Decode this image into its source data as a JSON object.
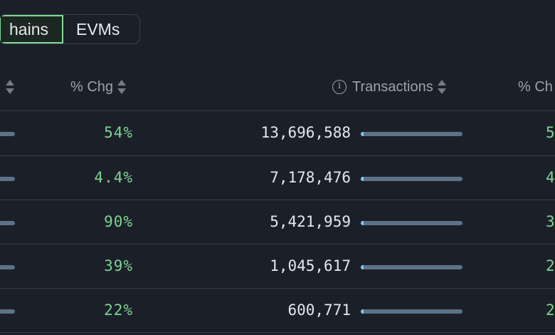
{
  "tabs": [
    {
      "label": "hains",
      "active": true
    },
    {
      "label": "EVMs",
      "active": false
    }
  ],
  "columns": {
    "chg_left": "% Chg",
    "transactions": "Transactions",
    "chg_right": "% Ch"
  },
  "icons": {
    "sort": "sort-icon",
    "info": "info-icon"
  },
  "rows": [
    {
      "chg": "54%",
      "transactions": "13,696,588",
      "right_chg": "5"
    },
    {
      "chg": "4.4%",
      "transactions": "7,178,476",
      "right_chg": "4"
    },
    {
      "chg": "90%",
      "transactions": "5,421,959",
      "right_chg": "3"
    },
    {
      "chg": "39%",
      "transactions": "1,045,617",
      "right_chg": "2"
    },
    {
      "chg": "22%",
      "transactions": "600,771",
      "right_chg": "2"
    }
  ],
  "colors": {
    "background": "#1b2028",
    "accent_green": "#7dd493",
    "bar": "#5b7289"
  }
}
